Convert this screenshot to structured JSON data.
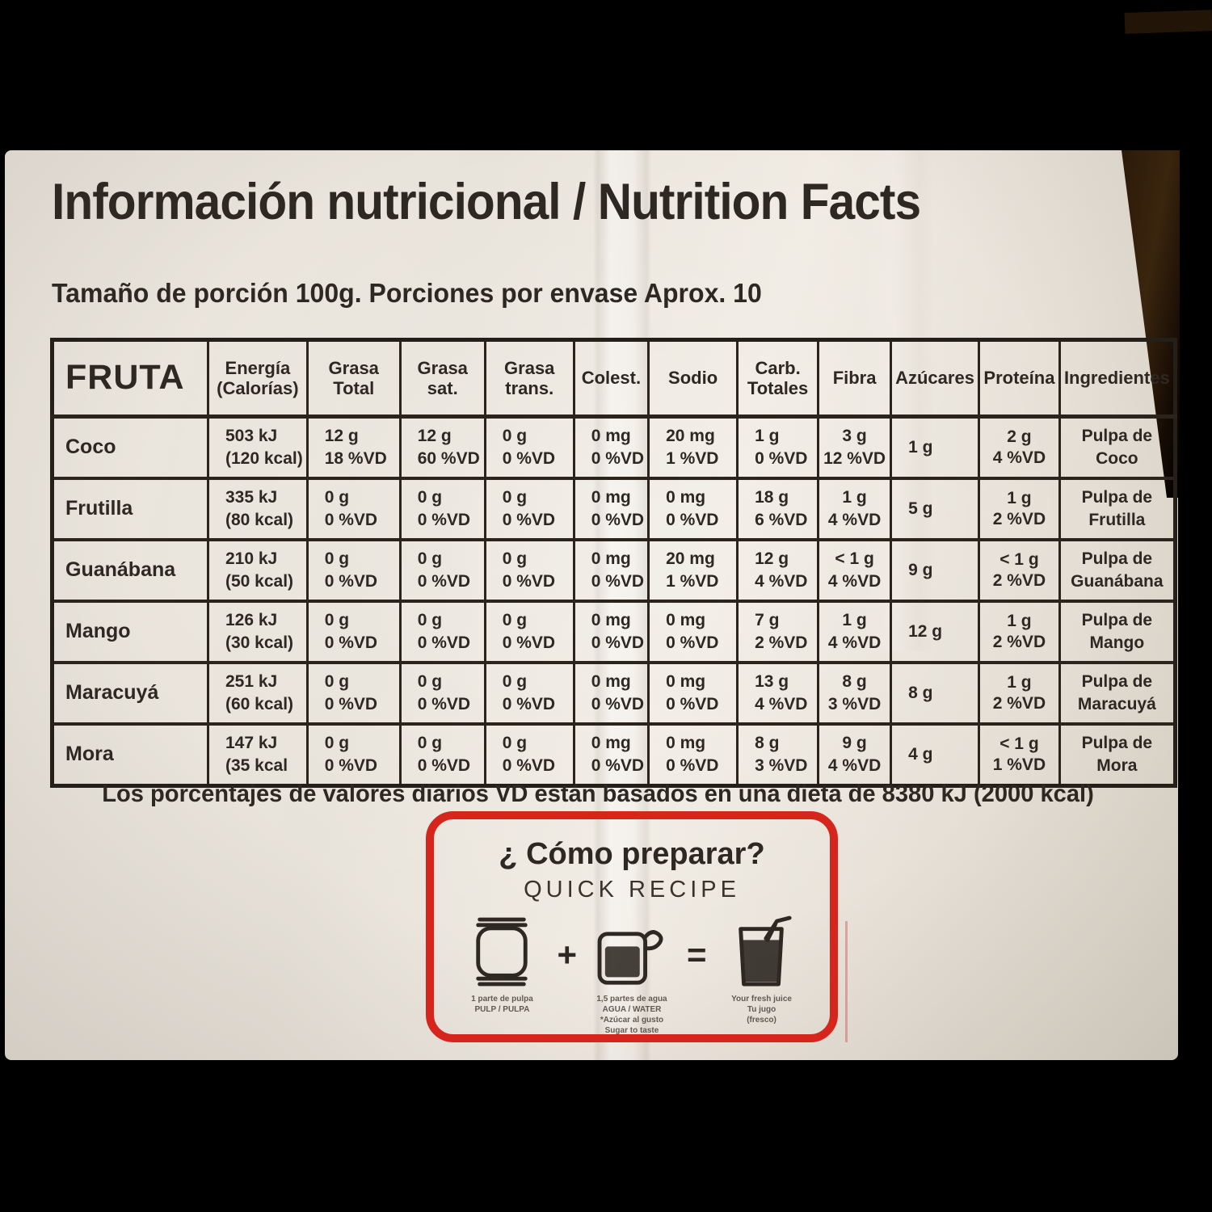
{
  "page": {
    "title": "Información nutricional / Nutrition Facts",
    "serving_line": "Tamaño de porción 100g. Porciones por envase  Aprox. 10",
    "footnote": "Los porcentajes de valores diarios VD están basados en una dieta de 8380 kJ (2000 kcal)"
  },
  "table": {
    "row_header_label": "FRUTA",
    "columns": [
      {
        "lines": [
          "Energía",
          "(Calorías)"
        ]
      },
      {
        "lines": [
          "Grasa",
          "Total"
        ]
      },
      {
        "lines": [
          "Grasa",
          "sat."
        ]
      },
      {
        "lines": [
          "Grasa",
          "trans."
        ]
      },
      {
        "lines": [
          "Colest."
        ]
      },
      {
        "lines": [
          "Sodio"
        ]
      },
      {
        "lines": [
          "Carb.",
          "Totales"
        ]
      },
      {
        "lines": [
          "Fibra"
        ]
      },
      {
        "lines": [
          "Azúcares"
        ]
      },
      {
        "lines": [
          "Proteína"
        ]
      },
      {
        "lines": [
          "Ingredientes"
        ]
      }
    ],
    "rows": [
      {
        "fruit": "Coco",
        "cells": [
          [
            "503 kJ",
            "(120 kcal)"
          ],
          [
            "12 g",
            "18 %VD"
          ],
          [
            "12 g",
            "60 %VD"
          ],
          [
            "0 g",
            "0 %VD"
          ],
          [
            "0 mg",
            "0 %VD"
          ],
          [
            "20 mg",
            "1 %VD"
          ],
          [
            "1 g",
            "0 %VD"
          ],
          [
            "3 g",
            "12 %VD"
          ],
          [
            "1 g"
          ],
          [
            "2 g",
            "4 %VD"
          ],
          [
            "Pulpa de",
            "Coco"
          ]
        ]
      },
      {
        "fruit": "Frutilla",
        "cells": [
          [
            "335 kJ",
            "(80 kcal)"
          ],
          [
            "0 g",
            "0 %VD"
          ],
          [
            "0 g",
            "0 %VD"
          ],
          [
            "0 g",
            "0 %VD"
          ],
          [
            "0 mg",
            "0 %VD"
          ],
          [
            "0 mg",
            "0 %VD"
          ],
          [
            "18 g",
            "6 %VD"
          ],
          [
            "1 g",
            "4 %VD"
          ],
          [
            "5 g"
          ],
          [
            "1 g",
            "2 %VD"
          ],
          [
            "Pulpa de",
            "Frutilla"
          ]
        ]
      },
      {
        "fruit": "Guanábana",
        "cells": [
          [
            "210 kJ",
            "(50 kcal)"
          ],
          [
            "0 g",
            "0 %VD"
          ],
          [
            "0 g",
            "0 %VD"
          ],
          [
            "0 g",
            "0 %VD"
          ],
          [
            "0 mg",
            "0 %VD"
          ],
          [
            "20 mg",
            "1 %VD"
          ],
          [
            "12 g",
            "4 %VD"
          ],
          [
            "< 1 g",
            "4 %VD"
          ],
          [
            "9 g"
          ],
          [
            "< 1 g",
            "2 %VD"
          ],
          [
            "Pulpa de",
            "Guanábana"
          ]
        ]
      },
      {
        "fruit": "Mango",
        "cells": [
          [
            "126 kJ",
            "(30 kcal)"
          ],
          [
            "0 g",
            "0 %VD"
          ],
          [
            "0 g",
            "0 %VD"
          ],
          [
            "0 g",
            "0 %VD"
          ],
          [
            "0 mg",
            "0 %VD"
          ],
          [
            "0 mg",
            "0 %VD"
          ],
          [
            "7 g",
            "2 %VD"
          ],
          [
            "1 g",
            "4 %VD"
          ],
          [
            "12 g"
          ],
          [
            "1 g",
            "2 %VD"
          ],
          [
            "Pulpa de",
            "Mango"
          ]
        ]
      },
      {
        "fruit": "Maracuyá",
        "cells": [
          [
            "251 kJ",
            "(60 kcal)"
          ],
          [
            "0 g",
            "0 %VD"
          ],
          [
            "0 g",
            "0 %VD"
          ],
          [
            "0 g",
            "0 %VD"
          ],
          [
            "0 mg",
            "0 %VD"
          ],
          [
            "0 mg",
            "0 %VD"
          ],
          [
            "13 g",
            "4 %VD"
          ],
          [
            "8 g",
            "3 %VD"
          ],
          [
            "8 g"
          ],
          [
            "1 g",
            "2 %VD"
          ],
          [
            "Pulpa de",
            "Maracuyá"
          ]
        ]
      },
      {
        "fruit": "Mora",
        "cells": [
          [
            "147 kJ",
            "(35 kcal"
          ],
          [
            "0 g",
            "0 %VD"
          ],
          [
            "0 g",
            "0 %VD"
          ],
          [
            "0 g",
            "0 %VD"
          ],
          [
            "0 mg",
            "0 %VD"
          ],
          [
            "0 mg",
            "0 %VD"
          ],
          [
            "8 g",
            "3 %VD"
          ],
          [
            "9 g",
            "4 %VD"
          ],
          [
            "4 g"
          ],
          [
            "< 1 g",
            "1 %VD"
          ],
          [
            "Pulpa de",
            "Mora"
          ]
        ]
      }
    ]
  },
  "recipe_box": {
    "title": "¿ Cómo preparar?",
    "subtitle": "QUICK RECIPE",
    "plus": "+",
    "equals": "=",
    "steps": [
      {
        "icon": "pulp-sachet-icon",
        "caption_lines": [
          "1 parte de pulpa",
          "PULP / PULPA"
        ]
      },
      {
        "icon": "water-mug-icon",
        "caption_lines": [
          "1,5 partes de agua",
          "AGUA / WATER",
          "*Azúcar al gusto",
          "Sugar to taste"
        ]
      },
      {
        "icon": "juice-glass-icon",
        "caption_lines": [
          "Your fresh juice",
          "Tu jugo",
          "(fresco)"
        ]
      }
    ]
  },
  "colors": {
    "package": "#eae5dc",
    "ink": "#2e2822",
    "accent_red": "#d6251d"
  }
}
